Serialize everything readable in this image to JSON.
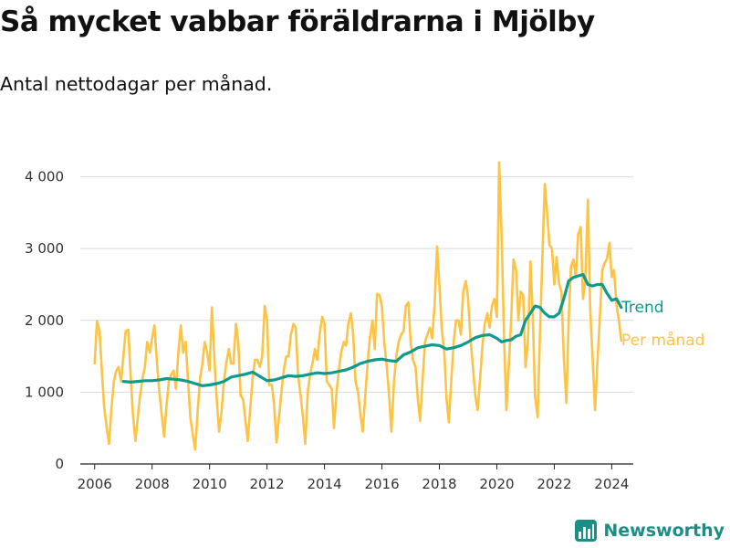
{
  "title": "Så mycket vabbar föräldrarna i Mjölby",
  "subtitle": "Antal nettodagar per månad.",
  "brand": {
    "name": "Newsworthy",
    "icon": "bar-chart-logo-icon"
  },
  "colors": {
    "monthly": "#fdc344",
    "trend": "#10998d",
    "grid": "#d9d9d9",
    "axis": "#222222",
    "brand": "#1b8f86"
  },
  "chart_data": {
    "type": "line",
    "ylim": [
      0,
      4300
    ],
    "xlim": [
      2005.5,
      2024.75
    ],
    "yticks": [
      0,
      1000,
      2000,
      3000,
      4000
    ],
    "ytick_labels": [
      "0",
      "1 000",
      "2 000",
      "3 000",
      "4 000"
    ],
    "xticks": [
      2006,
      2008,
      2010,
      2012,
      2014,
      2016,
      2018,
      2020,
      2022,
      2024
    ],
    "xtick_labels": [
      "2006",
      "2008",
      "2010",
      "2012",
      "2014",
      "2016",
      "2018",
      "2020",
      "2022",
      "2024"
    ],
    "grid": true,
    "series": [
      {
        "name": "Per månad",
        "color": "#fdc344",
        "x": [
          2006.0,
          2006.08,
          2006.17,
          2006.25,
          2006.33,
          2006.42,
          2006.5,
          2006.58,
          2006.67,
          2006.75,
          2006.83,
          2006.92,
          2007.0,
          2007.08,
          2007.17,
          2007.25,
          2007.33,
          2007.42,
          2007.5,
          2007.58,
          2007.67,
          2007.75,
          2007.83,
          2007.92,
          2008.0,
          2008.08,
          2008.17,
          2008.25,
          2008.33,
          2008.42,
          2008.5,
          2008.58,
          2008.67,
          2008.75,
          2008.83,
          2008.92,
          2009.0,
          2009.08,
          2009.17,
          2009.25,
          2009.33,
          2009.42,
          2009.5,
          2009.58,
          2009.67,
          2009.75,
          2009.83,
          2009.92,
          2010.0,
          2010.08,
          2010.17,
          2010.25,
          2010.33,
          2010.42,
          2010.5,
          2010.58,
          2010.67,
          2010.75,
          2010.83,
          2010.92,
          2011.0,
          2011.08,
          2011.17,
          2011.25,
          2011.33,
          2011.42,
          2011.5,
          2011.58,
          2011.67,
          2011.75,
          2011.83,
          2011.92,
          2012.0,
          2012.08,
          2012.17,
          2012.25,
          2012.33,
          2012.42,
          2012.5,
          2012.58,
          2012.67,
          2012.75,
          2012.83,
          2012.92,
          2013.0,
          2013.08,
          2013.17,
          2013.25,
          2013.33,
          2013.42,
          2013.5,
          2013.58,
          2013.67,
          2013.75,
          2013.83,
          2013.92,
          2014.0,
          2014.08,
          2014.17,
          2014.25,
          2014.33,
          2014.42,
          2014.5,
          2014.58,
          2014.67,
          2014.75,
          2014.83,
          2014.92,
          2015.0,
          2015.08,
          2015.17,
          2015.25,
          2015.33,
          2015.42,
          2015.5,
          2015.58,
          2015.67,
          2015.75,
          2015.83,
          2015.92,
          2016.0,
          2016.08,
          2016.17,
          2016.25,
          2016.33,
          2016.42,
          2016.5,
          2016.58,
          2016.67,
          2016.75,
          2016.83,
          2016.92,
          2017.0,
          2017.08,
          2017.17,
          2017.25,
          2017.33,
          2017.42,
          2017.5,
          2017.58,
          2017.67,
          2017.75,
          2017.83,
          2017.92,
          2018.0,
          2018.08,
          2018.17,
          2018.25,
          2018.33,
          2018.42,
          2018.5,
          2018.58,
          2018.67,
          2018.75,
          2018.83,
          2018.92,
          2019.0,
          2019.08,
          2019.17,
          2019.25,
          2019.33,
          2019.42,
          2019.5,
          2019.58,
          2019.67,
          2019.75,
          2019.83,
          2019.92,
          2020.0,
          2020.08,
          2020.17,
          2020.25,
          2020.33,
          2020.42,
          2020.5,
          2020.58,
          2020.67,
          2020.75,
          2020.83,
          2020.92,
          2021.0,
          2021.08,
          2021.17,
          2021.25,
          2021.33,
          2021.42,
          2021.5,
          2021.58,
          2021.67,
          2021.75,
          2021.83,
          2021.92,
          2022.0,
          2022.08,
          2022.17,
          2022.25,
          2022.33,
          2022.42,
          2022.5,
          2022.58,
          2022.67,
          2022.75,
          2022.83,
          2022.92,
          2023.0,
          2023.08,
          2023.17,
          2023.25,
          2023.33,
          2023.42,
          2023.5,
          2023.58,
          2023.67,
          2023.75,
          2023.83,
          2023.92,
          2024.0,
          2024.08,
          2024.17,
          2024.25,
          2024.33
        ],
        "values": [
          1400,
          1990,
          1850,
          1300,
          800,
          500,
          280,
          750,
          1150,
          1300,
          1350,
          1150,
          1500,
          1850,
          1870,
          1250,
          700,
          320,
          650,
          950,
          1200,
          1350,
          1700,
          1550,
          1750,
          1930,
          1400,
          1000,
          700,
          380,
          800,
          1150,
          1250,
          1300,
          1050,
          1600,
          1930,
          1550,
          1700,
          1150,
          650,
          400,
          200,
          700,
          1200,
          1400,
          1700,
          1550,
          1300,
          2180,
          1450,
          900,
          450,
          750,
          1150,
          1400,
          1600,
          1400,
          1400,
          1950,
          1700,
          950,
          900,
          600,
          320,
          800,
          1200,
          1450,
          1450,
          1350,
          1500,
          2200,
          2000,
          1100,
          1100,
          800,
          300,
          650,
          1000,
          1300,
          1500,
          1500,
          1800,
          1950,
          1900,
          1250,
          950,
          650,
          280,
          1000,
          1250,
          1400,
          1600,
          1450,
          1800,
          2050,
          1950,
          1150,
          1100,
          1050,
          500,
          1000,
          1300,
          1550,
          1700,
          1650,
          1950,
          2100,
          1800,
          1150,
          1000,
          700,
          450,
          950,
          1400,
          1750,
          2000,
          1600,
          2370,
          2350,
          2200,
          1700,
          1350,
          950,
          450,
          1150,
          1500,
          1700,
          1800,
          1850,
          2200,
          2250,
          1700,
          1450,
          1350,
          900,
          600,
          1200,
          1700,
          1800,
          1900,
          1750,
          2200,
          3030,
          2500,
          1900,
          1550,
          900,
          580,
          1200,
          1700,
          2000,
          2000,
          1800,
          2400,
          2550,
          2300,
          1750,
          1350,
          950,
          750,
          1200,
          1650,
          1950,
          2100,
          1900,
          2200,
          2300,
          2050,
          4200,
          3150,
          1800,
          750,
          1400,
          2000,
          2850,
          2700,
          2000,
          2400,
          2350,
          1350,
          1700,
          2820,
          2100,
          950,
          650,
          1800,
          2800,
          3900,
          3500,
          3050,
          3000,
          2500,
          2880,
          2500,
          2400,
          1500,
          850,
          2000,
          2750,
          2850,
          2600,
          3200,
          3300,
          2300,
          2550,
          3680,
          2150,
          1500,
          750,
          1400,
          2000,
          2700,
          2800,
          2850,
          3080,
          2600,
          2700,
          2200,
          2000,
          1720
        ]
      },
      {
        "name": "Trend",
        "color": "#10998d",
        "x": [
          2007.0,
          2007.25,
          2007.5,
          2007.75,
          2008.0,
          2008.25,
          2008.5,
          2008.75,
          2009.0,
          2009.25,
          2009.5,
          2009.75,
          2010.0,
          2010.25,
          2010.5,
          2010.75,
          2011.0,
          2011.25,
          2011.5,
          2011.75,
          2012.0,
          2012.25,
          2012.5,
          2012.75,
          2013.0,
          2013.25,
          2013.5,
          2013.75,
          2014.0,
          2014.25,
          2014.5,
          2014.75,
          2015.0,
          2015.25,
          2015.5,
          2015.75,
          2016.0,
          2016.25,
          2016.5,
          2016.75,
          2017.0,
          2017.25,
          2017.5,
          2017.75,
          2018.0,
          2018.25,
          2018.5,
          2018.75,
          2019.0,
          2019.25,
          2019.5,
          2019.75,
          2020.0,
          2020.17,
          2020.33,
          2020.5,
          2020.67,
          2020.83,
          2021.0,
          2021.17,
          2021.33,
          2021.5,
          2021.67,
          2021.83,
          2022.0,
          2022.17,
          2022.33,
          2022.5,
          2022.67,
          2022.83,
          2023.0,
          2023.17,
          2023.33,
          2023.5,
          2023.67,
          2023.83,
          2024.0,
          2024.17,
          2024.33
        ],
        "values": [
          1150,
          1140,
          1150,
          1160,
          1160,
          1170,
          1190,
          1180,
          1170,
          1150,
          1120,
          1090,
          1100,
          1120,
          1150,
          1210,
          1230,
          1250,
          1280,
          1220,
          1160,
          1170,
          1200,
          1230,
          1220,
          1230,
          1250,
          1270,
          1260,
          1270,
          1290,
          1310,
          1350,
          1400,
          1430,
          1450,
          1460,
          1440,
          1430,
          1520,
          1560,
          1620,
          1640,
          1660,
          1650,
          1600,
          1620,
          1650,
          1700,
          1760,
          1790,
          1800,
          1750,
          1700,
          1720,
          1730,
          1780,
          1800,
          2000,
          2100,
          2200,
          2180,
          2100,
          2050,
          2050,
          2100,
          2300,
          2550,
          2600,
          2620,
          2640,
          2500,
          2480,
          2500,
          2500,
          2380,
          2280,
          2300,
          2180
        ]
      }
    ]
  }
}
